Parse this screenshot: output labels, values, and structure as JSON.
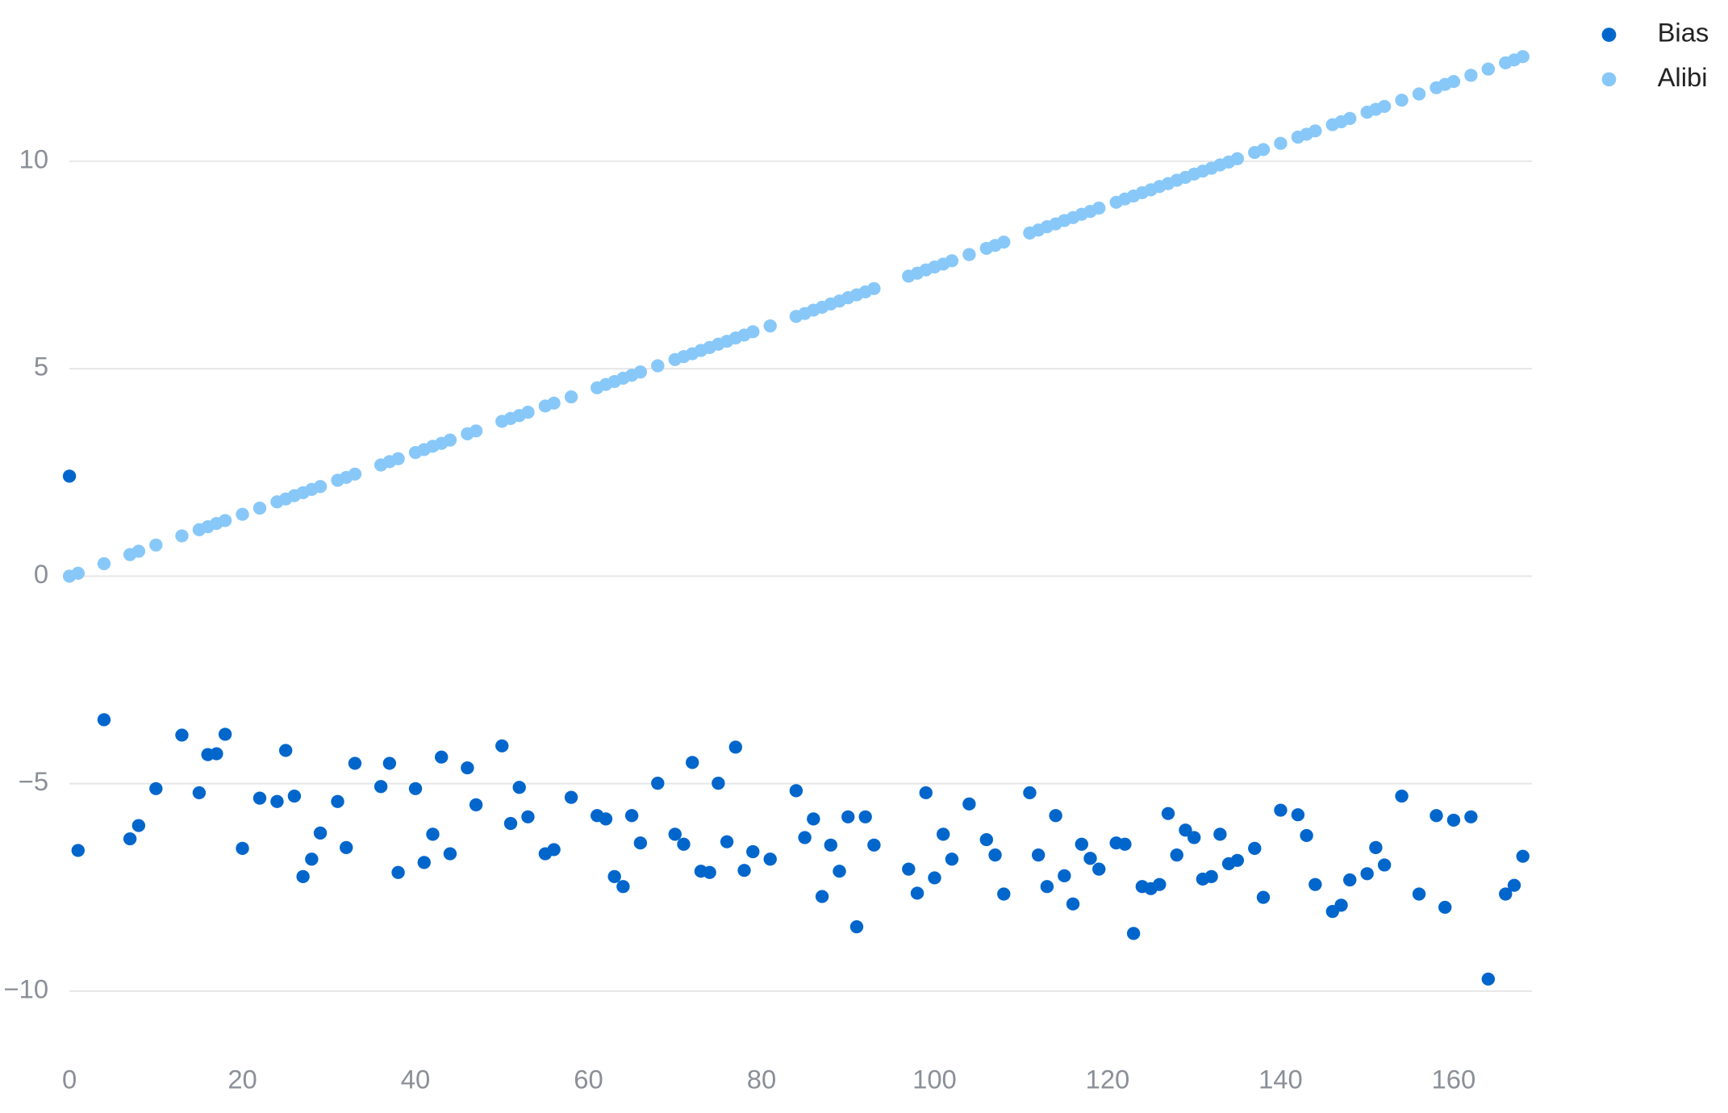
{
  "chart_data": {
    "type": "scatter",
    "x": [
      0,
      1,
      4,
      7,
      8,
      10,
      13,
      15,
      16,
      17,
      18,
      20,
      22,
      24,
      25,
      26,
      27,
      28,
      29,
      31,
      32,
      33,
      36,
      37,
      38,
      40,
      41,
      42,
      43,
      44,
      46,
      47,
      50,
      51,
      52,
      53,
      55,
      56,
      58,
      61,
      62,
      63,
      64,
      65,
      66,
      68,
      70,
      71,
      72,
      73,
      74,
      75,
      76,
      77,
      78,
      79,
      81,
      84,
      85,
      86,
      87,
      88,
      89,
      90,
      91,
      92,
      93,
      97,
      98,
      99,
      100,
      101,
      102,
      104,
      106,
      107,
      108,
      111,
      112,
      113,
      114,
      115,
      116,
      117,
      118,
      119,
      121,
      122,
      123,
      124,
      125,
      126,
      127,
      128,
      129,
      130,
      131,
      132,
      133,
      134,
      135,
      137,
      138,
      140,
      142,
      143,
      144,
      146,
      147,
      148,
      150,
      151,
      152,
      154,
      156,
      158,
      159,
      160,
      162,
      164,
      166,
      167,
      168
    ],
    "series": [
      {
        "name": "Bias",
        "color": "#0066cc",
        "values": [
          2.41,
          -6.61,
          -3.46,
          -6.33,
          -6.01,
          -5.12,
          -3.83,
          -5.22,
          -4.3,
          -4.28,
          -3.81,
          -6.56,
          -5.35,
          -5.43,
          -4.2,
          -5.3,
          -7.24,
          -6.82,
          -6.19,
          -5.43,
          -6.54,
          -4.51,
          -5.07,
          -4.51,
          -7.14,
          -5.12,
          -6.9,
          -6.22,
          -4.36,
          -6.69,
          -4.62,
          -5.51,
          -4.09,
          -5.96,
          -5.09,
          -5.8,
          -6.69,
          -6.59,
          -5.33,
          -5.77,
          -5.85,
          -7.24,
          -7.48,
          -5.77,
          -6.43,
          -4.99,
          -6.22,
          -6.46,
          -4.49,
          -7.11,
          -7.14,
          -4.99,
          -6.4,
          -4.12,
          -7.09,
          -6.64,
          -6.82,
          -5.17,
          -6.3,
          -5.85,
          -7.72,
          -6.48,
          -7.11,
          -5.8,
          -8.45,
          -5.8,
          -6.48,
          -7.06,
          -7.64,
          -5.22,
          -7.27,
          -6.22,
          -6.82,
          -5.49,
          -6.35,
          -6.72,
          -7.66,
          -5.22,
          -6.72,
          -7.48,
          -5.77,
          -7.22,
          -7.9,
          -6.46,
          -6.8,
          -7.06,
          -6.43,
          -6.46,
          -8.61,
          -7.48,
          -7.53,
          -7.43,
          -5.72,
          -6.72,
          -6.12,
          -6.3,
          -7.3,
          -7.24,
          -6.22,
          -6.93,
          -6.85,
          -6.56,
          -7.74,
          -5.64,
          -5.75,
          -6.25,
          -7.43,
          -8.08,
          -7.93,
          -7.32,
          -7.17,
          -6.54,
          -6.96,
          -5.3,
          -7.66,
          -5.77,
          -7.98,
          -5.88,
          -5.8,
          -9.71,
          -7.66,
          -7.45,
          -6.75
        ]
      },
      {
        "name": "Alibi",
        "color": "#88c8f8",
        "values": [
          0,
          0.07,
          0.3,
          0.52,
          0.6,
          0.75,
          0.97,
          1.12,
          1.19,
          1.27,
          1.34,
          1.49,
          1.64,
          1.79,
          1.86,
          1.94,
          2.01,
          2.09,
          2.16,
          2.31,
          2.38,
          2.46,
          2.68,
          2.76,
          2.83,
          2.98,
          3.05,
          3.13,
          3.2,
          3.28,
          3.43,
          3.5,
          3.73,
          3.8,
          3.87,
          3.95,
          4.1,
          4.17,
          4.32,
          4.54,
          4.62,
          4.69,
          4.77,
          4.84,
          4.92,
          5.07,
          5.22,
          5.29,
          5.36,
          5.44,
          5.51,
          5.59,
          5.66,
          5.74,
          5.81,
          5.89,
          6.03,
          6.26,
          6.33,
          6.41,
          6.48,
          6.56,
          6.63,
          6.71,
          6.78,
          6.85,
          6.93,
          7.23,
          7.3,
          7.38,
          7.45,
          7.52,
          7.6,
          7.75,
          7.9,
          7.97,
          8.05,
          8.27,
          8.34,
          8.42,
          8.49,
          8.57,
          8.64,
          8.72,
          8.79,
          8.87,
          9.01,
          9.09,
          9.16,
          9.24,
          9.31,
          9.39,
          9.46,
          9.54,
          9.61,
          9.69,
          9.76,
          9.83,
          9.91,
          9.98,
          10.06,
          10.21,
          10.28,
          10.43,
          10.58,
          10.65,
          10.73,
          10.88,
          10.95,
          11.03,
          11.18,
          11.25,
          11.32,
          11.47,
          11.62,
          11.77,
          11.85,
          11.92,
          12.07,
          12.22,
          12.37,
          12.44,
          12.52
        ]
      }
    ],
    "xlim": [
      0,
      169
    ],
    "xticks": [
      0,
      20,
      40,
      60,
      80,
      100,
      120,
      140,
      160
    ],
    "ylim": [
      -11.3,
      13.9
    ],
    "yticks": [
      {
        "value": -10,
        "label": "−10"
      },
      {
        "value": -5,
        "label": "−5"
      },
      0,
      5,
      10
    ],
    "grid": true,
    "legend": "upper right"
  }
}
